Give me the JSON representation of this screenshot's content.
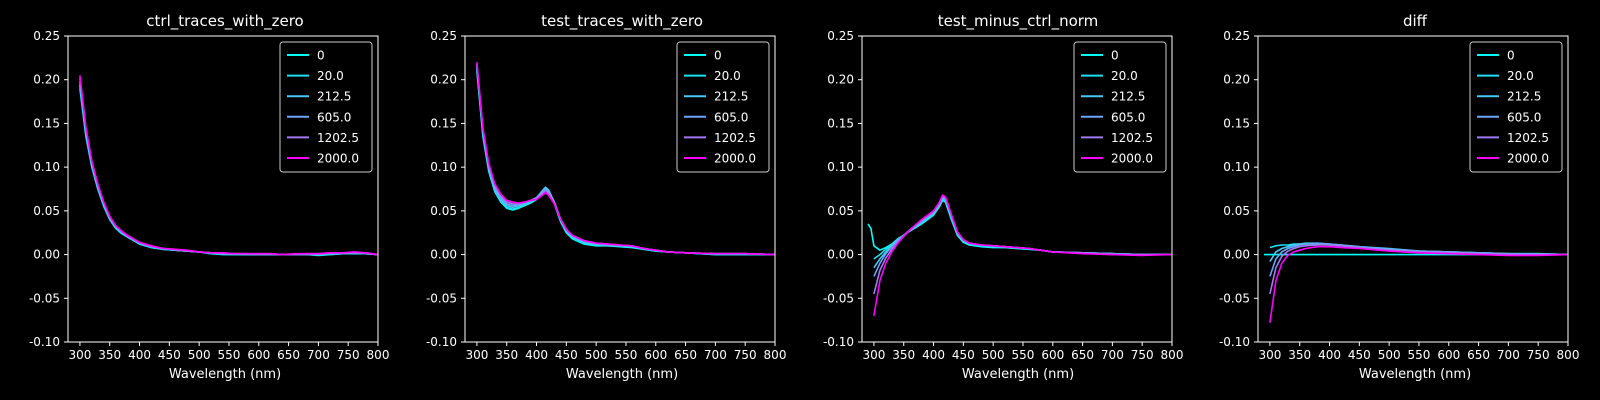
{
  "figure": {
    "background": "#000000",
    "foreground": "#ffffff"
  },
  "legend_labels": [
    "0",
    "20.0",
    "212.5",
    "605.0",
    "1202.5",
    "2000.0"
  ],
  "series_colors": [
    "#00ffff",
    "#1ee0f0",
    "#48c8f8",
    "#6aa6f8",
    "#a07af0",
    "#ff00ff"
  ],
  "chart_data": [
    {
      "type": "line",
      "title": "ctrl_traces_with_zero",
      "xlabel": "Wavelength (nm)",
      "ylabel": "",
      "xlim": [
        280,
        800
      ],
      "ylim": [
        -0.1,
        0.25
      ],
      "xticks": [
        300,
        350,
        400,
        450,
        500,
        550,
        600,
        650,
        700,
        750,
        800
      ],
      "yticks": [
        -0.1,
        -0.05,
        0.0,
        0.05,
        0.1,
        0.15,
        0.2,
        0.25
      ],
      "grid": false,
      "legend_position": "top-right",
      "x": [
        300,
        310,
        320,
        330,
        340,
        350,
        360,
        370,
        380,
        390,
        400,
        420,
        440,
        460,
        480,
        500,
        520,
        540,
        560,
        580,
        600,
        620,
        640,
        660,
        680,
        700,
        720,
        740,
        760,
        780,
        800
      ],
      "series": [
        {
          "name": "0",
          "values": [
            0.19,
            0.135,
            0.1,
            0.075,
            0.055,
            0.04,
            0.03,
            0.024,
            0.02,
            0.016,
            0.012,
            0.008,
            0.006,
            0.005,
            0.004,
            0.003,
            0.001,
            0.0,
            0.0,
            0.0,
            0.0,
            0.0,
            0.0,
            0.0,
            0.0,
            -0.001,
            0.0,
            0.001,
            0.001,
            0.001,
            0.0
          ]
        },
        {
          "name": "20.0",
          "values": [
            0.193,
            0.137,
            0.101,
            0.076,
            0.056,
            0.041,
            0.031,
            0.025,
            0.02,
            0.016,
            0.013,
            0.008,
            0.006,
            0.005,
            0.004,
            0.003,
            0.001,
            0.001,
            0.0,
            0.0,
            0.0,
            0.0,
            0.0,
            0.0,
            0.0,
            0.0,
            0.0,
            0.001,
            0.001,
            0.001,
            0.0
          ]
        },
        {
          "name": "212.5",
          "values": [
            0.195,
            0.139,
            0.102,
            0.077,
            0.057,
            0.041,
            0.031,
            0.025,
            0.021,
            0.017,
            0.013,
            0.009,
            0.006,
            0.005,
            0.004,
            0.003,
            0.002,
            0.001,
            0.001,
            0.0,
            0.0,
            0.0,
            0.0,
            0.0,
            0.0,
            0.0,
            0.001,
            0.001,
            0.002,
            0.001,
            0.0
          ]
        },
        {
          "name": "605.0",
          "values": [
            0.198,
            0.141,
            0.104,
            0.078,
            0.058,
            0.042,
            0.032,
            0.026,
            0.021,
            0.017,
            0.013,
            0.009,
            0.007,
            0.005,
            0.004,
            0.003,
            0.002,
            0.001,
            0.001,
            0.001,
            0.0,
            0.0,
            0.0,
            0.0,
            0.0,
            0.0,
            0.001,
            0.002,
            0.002,
            0.001,
            0.0
          ]
        },
        {
          "name": "1202.5",
          "values": [
            0.202,
            0.144,
            0.106,
            0.08,
            0.059,
            0.043,
            0.033,
            0.026,
            0.021,
            0.017,
            0.014,
            0.009,
            0.007,
            0.006,
            0.004,
            0.003,
            0.002,
            0.001,
            0.001,
            0.001,
            0.001,
            0.001,
            0.0,
            0.0,
            0.001,
            0.001,
            0.002,
            0.002,
            0.002,
            0.002,
            0.0
          ]
        },
        {
          "name": "2000.0",
          "values": [
            0.205,
            0.146,
            0.107,
            0.081,
            0.06,
            0.044,
            0.033,
            0.027,
            0.022,
            0.018,
            0.014,
            0.01,
            0.007,
            0.006,
            0.005,
            0.003,
            0.002,
            0.002,
            0.001,
            0.001,
            0.001,
            0.001,
            0.0,
            0.001,
            0.001,
            0.001,
            0.002,
            0.002,
            0.003,
            0.002,
            0.0
          ]
        }
      ]
    },
    {
      "type": "line",
      "title": "test_traces_with_zero",
      "xlabel": "Wavelength (nm)",
      "ylabel": "",
      "xlim": [
        280,
        800
      ],
      "ylim": [
        -0.1,
        0.25
      ],
      "xticks": [
        300,
        350,
        400,
        450,
        500,
        550,
        600,
        650,
        700,
        750,
        800
      ],
      "yticks": [
        -0.1,
        -0.05,
        0.0,
        0.05,
        0.1,
        0.15,
        0.2,
        0.25
      ],
      "grid": false,
      "legend_position": "top-right",
      "x": [
        300,
        310,
        320,
        330,
        340,
        350,
        360,
        370,
        380,
        390,
        400,
        410,
        415,
        420,
        430,
        440,
        450,
        460,
        480,
        500,
        520,
        540,
        560,
        580,
        600,
        620,
        650,
        700,
        750,
        800
      ],
      "series": [
        {
          "name": "0",
          "values": [
            0.21,
            0.135,
            0.095,
            0.072,
            0.06,
            0.053,
            0.051,
            0.053,
            0.056,
            0.059,
            0.063,
            0.072,
            0.076,
            0.073,
            0.058,
            0.038,
            0.025,
            0.018,
            0.012,
            0.01,
            0.01,
            0.009,
            0.008,
            0.006,
            0.004,
            0.003,
            0.002,
            0.0,
            0.0,
            0.0
          ]
        },
        {
          "name": "20.0",
          "values": [
            0.212,
            0.137,
            0.096,
            0.073,
            0.061,
            0.054,
            0.052,
            0.054,
            0.057,
            0.06,
            0.064,
            0.073,
            0.077,
            0.074,
            0.059,
            0.039,
            0.026,
            0.019,
            0.013,
            0.011,
            0.01,
            0.01,
            0.009,
            0.006,
            0.004,
            0.003,
            0.002,
            0.0,
            0.0,
            0.0
          ]
        },
        {
          "name": "212.5",
          "values": [
            0.214,
            0.139,
            0.098,
            0.075,
            0.063,
            0.056,
            0.054,
            0.056,
            0.058,
            0.061,
            0.065,
            0.073,
            0.077,
            0.074,
            0.06,
            0.04,
            0.027,
            0.02,
            0.014,
            0.012,
            0.011,
            0.01,
            0.009,
            0.007,
            0.005,
            0.003,
            0.002,
            0.001,
            0.001,
            0.0
          ]
        },
        {
          "name": "605.0",
          "values": [
            0.216,
            0.141,
            0.1,
            0.077,
            0.065,
            0.058,
            0.056,
            0.057,
            0.059,
            0.062,
            0.065,
            0.072,
            0.075,
            0.072,
            0.06,
            0.041,
            0.028,
            0.021,
            0.015,
            0.012,
            0.011,
            0.01,
            0.01,
            0.007,
            0.005,
            0.003,
            0.002,
            0.001,
            0.001,
            0.0
          ]
        },
        {
          "name": "1202.5",
          "values": [
            0.218,
            0.143,
            0.102,
            0.079,
            0.067,
            0.06,
            0.058,
            0.058,
            0.06,
            0.062,
            0.064,
            0.07,
            0.073,
            0.07,
            0.059,
            0.041,
            0.029,
            0.022,
            0.016,
            0.013,
            0.012,
            0.011,
            0.01,
            0.007,
            0.005,
            0.003,
            0.002,
            0.001,
            0.001,
            0.0
          ]
        },
        {
          "name": "2000.0",
          "values": [
            0.22,
            0.145,
            0.104,
            0.081,
            0.069,
            0.062,
            0.06,
            0.059,
            0.06,
            0.062,
            0.063,
            0.068,
            0.071,
            0.068,
            0.058,
            0.041,
            0.029,
            0.022,
            0.016,
            0.013,
            0.012,
            0.011,
            0.01,
            0.007,
            0.005,
            0.003,
            0.002,
            0.001,
            0.001,
            0.0
          ]
        }
      ]
    },
    {
      "type": "line",
      "title": "test_minus_ctrl_norm",
      "xlabel": "Wavelength (nm)",
      "ylabel": "",
      "xlim": [
        280,
        800
      ],
      "ylim": [
        -0.1,
        0.25
      ],
      "xticks": [
        300,
        350,
        400,
        450,
        500,
        550,
        600,
        650,
        700,
        750,
        800
      ],
      "yticks": [
        -0.1,
        -0.05,
        0.0,
        0.05,
        0.1,
        0.15,
        0.2,
        0.25
      ],
      "grid": false,
      "legend_position": "top-right",
      "x": [
        290,
        295,
        300,
        310,
        320,
        330,
        340,
        350,
        360,
        370,
        380,
        390,
        400,
        410,
        415,
        420,
        430,
        440,
        450,
        460,
        480,
        500,
        520,
        540,
        560,
        580,
        600,
        650,
        700,
        750,
        800
      ],
      "series": [
        {
          "name": "0",
          "values": [
            0.035,
            0.03,
            0.01,
            0.005,
            0.008,
            0.012,
            0.018,
            0.022,
            0.027,
            0.031,
            0.035,
            0.04,
            0.045,
            0.055,
            0.062,
            0.06,
            0.04,
            0.022,
            0.014,
            0.011,
            0.009,
            0.008,
            0.008,
            0.007,
            0.006,
            0.005,
            0.003,
            0.002,
            0.001,
            0.0,
            0.0
          ]
        },
        {
          "name": "20.0",
          "values": [
            null,
            null,
            -0.005,
            0.0,
            0.006,
            0.011,
            0.017,
            0.022,
            0.027,
            0.031,
            0.036,
            0.041,
            0.046,
            0.056,
            0.064,
            0.062,
            0.042,
            0.023,
            0.015,
            0.012,
            0.01,
            0.009,
            0.008,
            0.007,
            0.006,
            0.005,
            0.003,
            0.002,
            0.001,
            0.0,
            0.0
          ]
        },
        {
          "name": "212.5",
          "values": [
            null,
            null,
            -0.015,
            -0.005,
            0.003,
            0.01,
            0.017,
            0.022,
            0.028,
            0.032,
            0.037,
            0.042,
            0.047,
            0.057,
            0.065,
            0.063,
            0.043,
            0.024,
            0.016,
            0.013,
            0.011,
            0.01,
            0.009,
            0.008,
            0.007,
            0.005,
            0.003,
            0.002,
            0.001,
            0.0,
            0.0
          ]
        },
        {
          "name": "605.0",
          "values": [
            null,
            null,
            -0.025,
            -0.01,
            0.001,
            0.009,
            0.016,
            0.022,
            0.028,
            0.033,
            0.038,
            0.043,
            0.048,
            0.058,
            0.066,
            0.064,
            0.044,
            0.025,
            0.017,
            0.013,
            0.011,
            0.01,
            0.009,
            0.008,
            0.007,
            0.005,
            0.003,
            0.002,
            0.001,
            0.0,
            0.0
          ]
        },
        {
          "name": "1202.5",
          "values": [
            null,
            null,
            -0.045,
            -0.018,
            -0.004,
            0.006,
            0.014,
            0.021,
            0.028,
            0.034,
            0.039,
            0.044,
            0.049,
            0.059,
            0.067,
            0.065,
            0.045,
            0.026,
            0.017,
            0.013,
            0.011,
            0.01,
            0.009,
            0.008,
            0.007,
            0.005,
            0.003,
            0.002,
            0.0,
            0.0,
            0.0
          ]
        },
        {
          "name": "2000.0",
          "values": [
            null,
            null,
            -0.07,
            -0.03,
            -0.01,
            0.003,
            0.013,
            0.021,
            0.028,
            0.034,
            0.04,
            0.045,
            0.05,
            0.06,
            0.068,
            0.066,
            0.046,
            0.026,
            0.017,
            0.013,
            0.011,
            0.01,
            0.009,
            0.008,
            0.007,
            0.005,
            0.003,
            0.001,
            0.0,
            -0.001,
            0.0
          ]
        }
      ]
    },
    {
      "type": "line",
      "title": "diff",
      "xlabel": "Wavelength (nm)",
      "ylabel": "",
      "xlim": [
        280,
        800
      ],
      "ylim": [
        -0.1,
        0.25
      ],
      "xticks": [
        300,
        350,
        400,
        450,
        500,
        550,
        600,
        650,
        700,
        750,
        800
      ],
      "yticks": [
        -0.1,
        -0.05,
        0.0,
        0.05,
        0.1,
        0.15,
        0.2,
        0.25
      ],
      "grid": false,
      "legend_position": "top-right",
      "x": [
        290,
        300,
        310,
        320,
        330,
        340,
        350,
        360,
        380,
        400,
        420,
        450,
        500,
        550,
        600,
        650,
        700,
        750,
        800
      ],
      "series": [
        {
          "name": "0",
          "values": [
            0.0,
            0.0,
            0.0,
            0.0,
            0.0,
            0.0,
            0.0,
            0.0,
            0.0,
            0.0,
            0.0,
            0.0,
            0.0,
            0.0,
            0.0,
            0.0,
            0.0,
            0.0,
            0.0
          ]
        },
        {
          "name": "20.0",
          "values": [
            null,
            0.008,
            0.01,
            0.011,
            0.011,
            0.012,
            0.012,
            0.012,
            0.012,
            0.011,
            0.01,
            0.008,
            0.006,
            0.004,
            0.003,
            0.002,
            0.001,
            0.001,
            0.0
          ]
        },
        {
          "name": "212.5",
          "values": [
            null,
            -0.008,
            0.003,
            0.007,
            0.009,
            0.011,
            0.012,
            0.013,
            0.013,
            0.012,
            0.011,
            0.009,
            0.007,
            0.004,
            0.003,
            0.002,
            0.001,
            0.001,
            0.0
          ]
        },
        {
          "name": "605.0",
          "values": [
            null,
            -0.025,
            -0.005,
            0.003,
            0.007,
            0.009,
            0.011,
            0.012,
            0.013,
            0.012,
            0.011,
            0.009,
            0.006,
            0.004,
            0.003,
            0.002,
            0.001,
            0.0,
            0.0
          ]
        },
        {
          "name": "1202.5",
          "values": [
            null,
            -0.045,
            -0.015,
            -0.002,
            0.004,
            0.007,
            0.009,
            0.01,
            0.011,
            0.011,
            0.01,
            0.008,
            0.005,
            0.003,
            0.002,
            0.001,
            0.0,
            0.0,
            0.0
          ]
        },
        {
          "name": "2000.0",
          "values": [
            null,
            -0.078,
            -0.03,
            -0.01,
            -0.001,
            0.003,
            0.005,
            0.007,
            0.009,
            0.009,
            0.008,
            0.007,
            0.004,
            0.002,
            0.001,
            0.0,
            -0.001,
            -0.001,
            0.0
          ]
        }
      ]
    }
  ]
}
